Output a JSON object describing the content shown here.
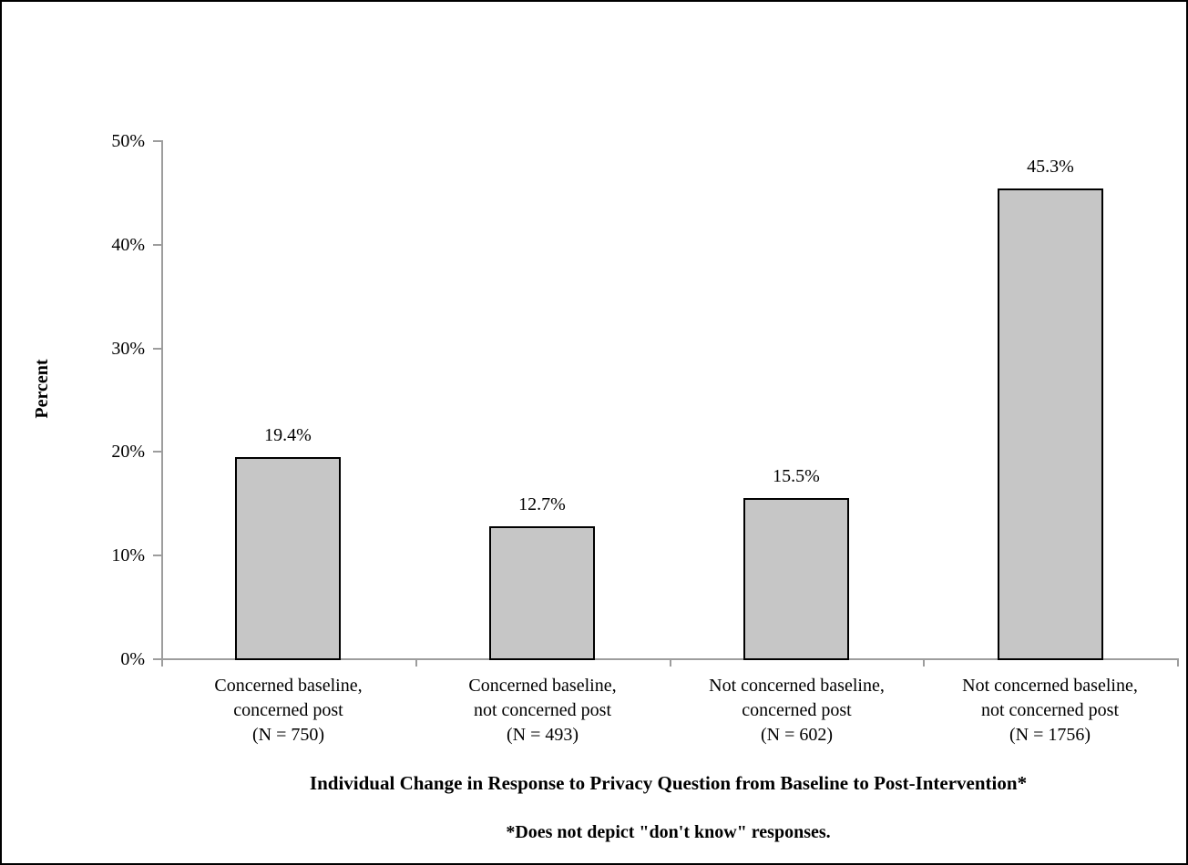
{
  "footnote": "*Does not depict \"don't know\" responses.",
  "chart_data": {
    "type": "bar",
    "title": "",
    "xlabel": "Individual Change in Response to Privacy Question from Baseline to Post-Intervention*",
    "ylabel": "Percent",
    "ylim": [
      0,
      50
    ],
    "grid": false,
    "legend": null,
    "yticks": [
      0,
      10,
      20,
      30,
      40,
      50
    ],
    "ytick_labels": [
      "0%",
      "10%",
      "20%",
      "30%",
      "40%",
      "50%"
    ],
    "categories": [
      "Concerned baseline, concerned post (N = 750)",
      "Concerned baseline, not concerned post (N = 493)",
      "Not concerned baseline, concerned post (N = 602)",
      "Not concerned baseline, not concerned post (N = 1756)"
    ],
    "category_lines": [
      [
        "Concerned baseline,",
        "concerned post",
        "(N = 750)"
      ],
      [
        "Concerned baseline,",
        "not concerned post",
        "(N = 493)"
      ],
      [
        "Not concerned baseline,",
        "concerned post",
        "(N = 602)"
      ],
      [
        "Not concerned baseline,",
        "not concerned post",
        "(N = 1756)"
      ]
    ],
    "values": [
      19.4,
      12.7,
      15.5,
      45.3
    ],
    "value_labels": [
      "19.4%",
      "12.7%",
      "15.5%",
      "45.3%"
    ],
    "bar_fill": "#c6c6c6",
    "bar_border": "#000000",
    "axis_color": "#9d9d9d"
  }
}
